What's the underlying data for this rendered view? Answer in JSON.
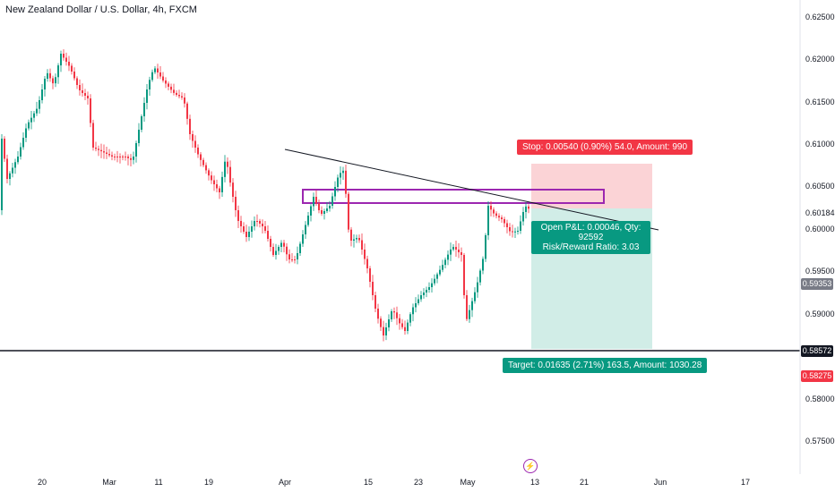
{
  "header": {
    "title": "New Zealand Dollar / U.S. Dollar, 4h, FXCM"
  },
  "yaxis": {
    "labels": [
      "0.62500",
      "0.62000",
      "0.61500",
      "0.61000",
      "0.60500",
      "0.60184",
      "0.60000",
      "0.59500",
      "0.59353",
      "0.59000",
      "0.58572",
      "0.58275",
      "0.58000",
      "0.57500"
    ]
  },
  "xaxis": {
    "labels": [
      "20",
      "Mar",
      "11",
      "19",
      "Apr",
      "15",
      "23",
      "May",
      "13",
      "21",
      "Jun",
      "17"
    ]
  },
  "tags": {
    "current": "0.59353",
    "line": "0.58572",
    "target": "0.58275"
  },
  "position": {
    "stop_label": "Stop: 0.00540 (0.90%) 54.0, Amount: 990",
    "pnl_line1": "Open P&L: 0.00046, Qty: 92592",
    "pnl_line2": "Risk/Reward Ratio: 3.03",
    "target_label": "Target: 0.01635 (2.71%) 163.5, Amount: 1030.28"
  },
  "colors": {
    "up": "#089981",
    "down": "#f23645",
    "stop_zone": "#fbd3d6",
    "target_zone": "#d1ede7",
    "rectangle": "#9c27b0"
  },
  "icons": {
    "flash": "lightning-icon"
  }
}
